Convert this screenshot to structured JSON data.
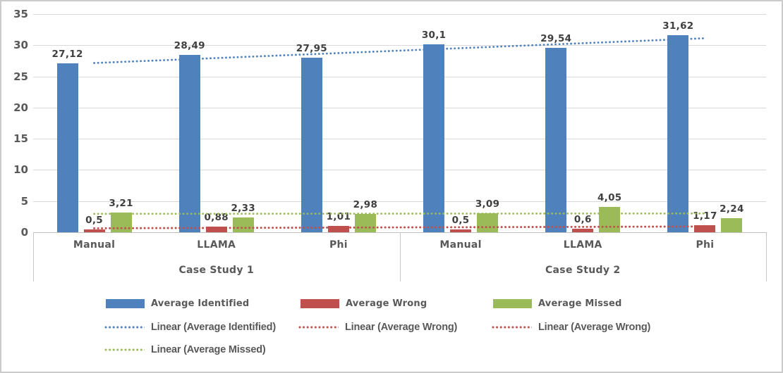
{
  "chart_data": {
    "type": "bar",
    "title": "",
    "xlabel": "",
    "ylabel": "",
    "ylim": [
      0,
      35
    ],
    "yticks": [
      0,
      5,
      10,
      15,
      20,
      25,
      30,
      35
    ],
    "grid": true,
    "legend_position": "bottom",
    "decimal_separator": ",",
    "groups": [
      {
        "label": "Case Study 1",
        "categories": [
          "Manual",
          "LLAMA",
          "Phi"
        ]
      },
      {
        "label": "Case Study 2",
        "categories": [
          "Manual",
          "LLAMA",
          "Phi"
        ]
      }
    ],
    "series": [
      {
        "name": "Average Identified",
        "color": "#4F81BD",
        "values": [
          27.12,
          28.49,
          27.95,
          30.1,
          29.54,
          31.62
        ],
        "labels": [
          "27,12",
          "28,49",
          "27,95",
          "30,1",
          "29,54",
          "31,62"
        ]
      },
      {
        "name": "Average Wrong",
        "color": "#C0504D",
        "values": [
          0.5,
          0.88,
          1.01,
          0.5,
          0.6,
          1.17
        ],
        "labels": [
          "0,5",
          "0,88",
          "1,01",
          "0,5",
          "0,6",
          "1,17"
        ]
      },
      {
        "name": "Average Missed",
        "color": "#9BBB59",
        "values": [
          3.21,
          2.33,
          2.98,
          3.09,
          4.05,
          2.24
        ],
        "labels": [
          "3,21",
          "2,33",
          "2,98",
          "3,09",
          "4,05",
          "2,24"
        ]
      }
    ],
    "trendlines": [
      {
        "name": "Linear (Average Identified)",
        "series": 0,
        "color": "#4F81BD"
      },
      {
        "name": "Linear (Average Wrong)",
        "series": 1,
        "color": "#C0504D"
      },
      {
        "name": "Linear (Average Wrong)",
        "series": 1,
        "color": "#C0504D"
      },
      {
        "name": "Linear (Average Missed)",
        "series": 2,
        "color": "#9BBB59"
      }
    ],
    "legend_rows": [
      [
        {
          "type": "bar",
          "color": "#4F81BD",
          "label": "Average Identified"
        },
        {
          "type": "bar",
          "color": "#C0504D",
          "label": "Average Wrong"
        },
        {
          "type": "bar",
          "color": "#9BBB59",
          "label": "Average Missed"
        }
      ],
      [
        {
          "type": "dotted",
          "color": "#4F81BD",
          "label": "Linear (Average Identified)"
        },
        {
          "type": "dotted",
          "color": "#C0504D",
          "label": "Linear (Average Wrong)"
        },
        {
          "type": "dotted",
          "color": "#C0504D",
          "label": "Linear (Average Wrong)"
        }
      ],
      [
        {
          "type": "dotted",
          "color": "#9BBB59",
          "label": "Linear (Average Missed)"
        }
      ]
    ],
    "colors": {
      "gridline": "#D9D9D9",
      "axis": "#BFBFBF",
      "text": "#595959",
      "data_label": "#3F3F3F",
      "background": "#FFFFFF",
      "border": "#CBCBCB"
    }
  }
}
